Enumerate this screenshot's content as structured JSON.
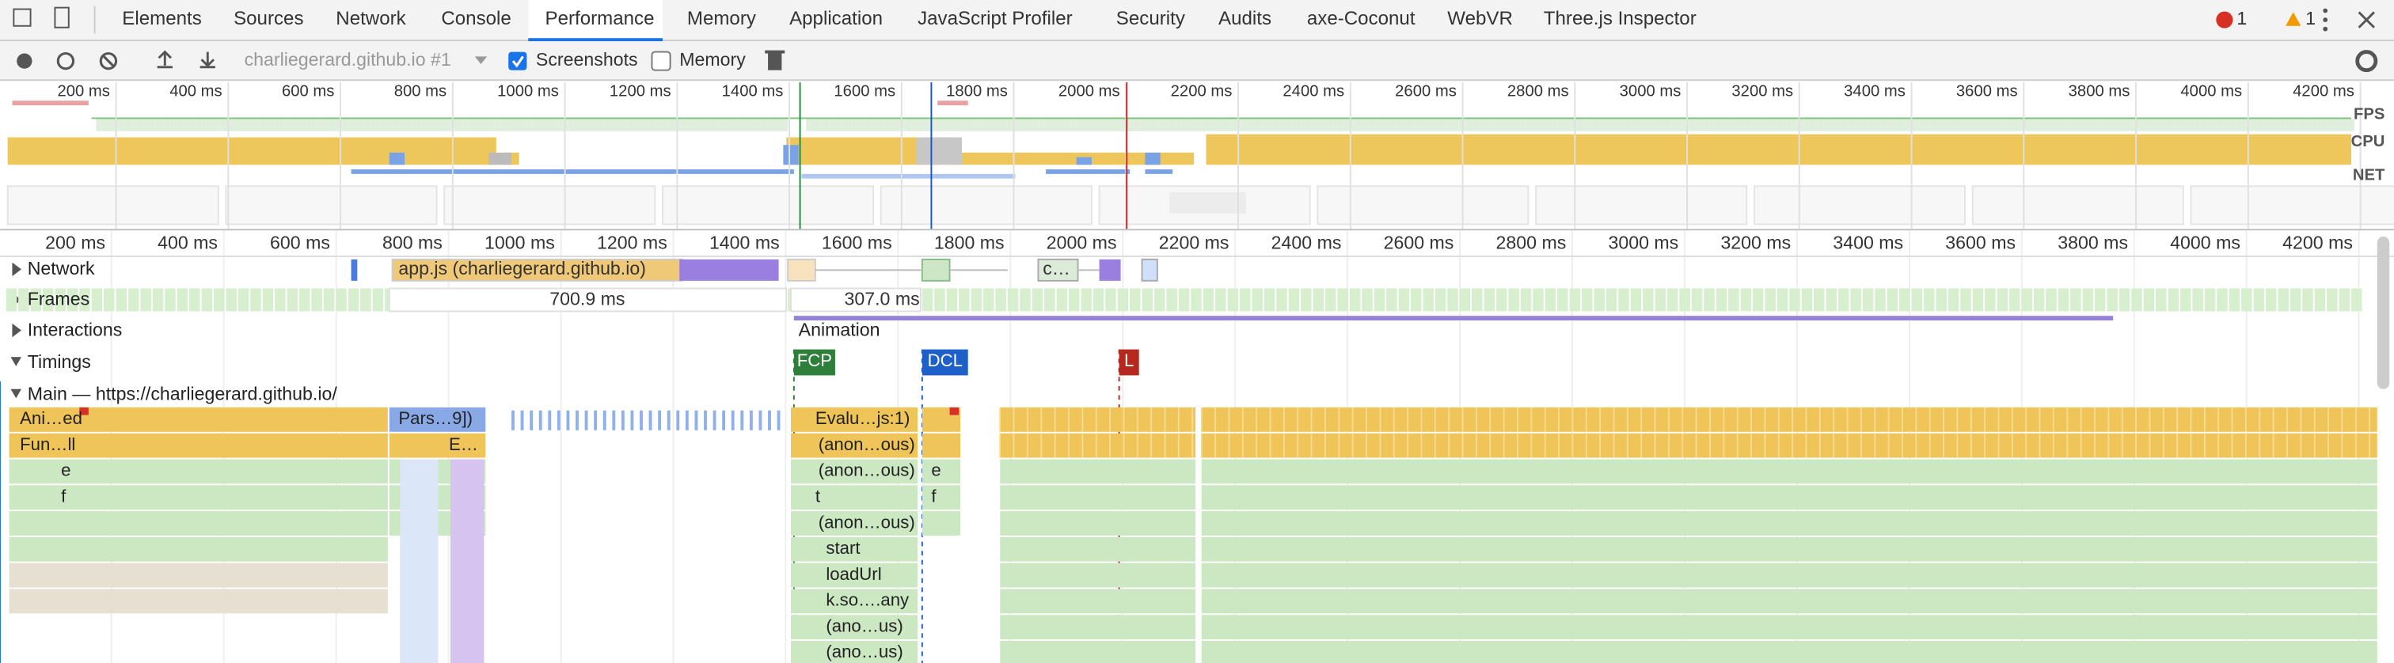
{
  "tabs": [
    "Elements",
    "Sources",
    "Network",
    "Console",
    "Performance",
    "Memory",
    "Application",
    "JavaScript Profiler",
    "Security",
    "Audits",
    "axe-Coconut",
    "WebVR",
    "Three.js Inspector"
  ],
  "console_badges": {
    "errors": "1",
    "warnings": "1"
  },
  "toolbar": {
    "target": "charliegerard.github.io #1",
    "screenshots": "Screenshots",
    "memory": "Memory"
  },
  "overview": {
    "ticks": [
      "200 ms",
      "400 ms",
      "600 ms",
      "800 ms",
      "1000 ms",
      "1200 ms",
      "1400 ms",
      "1600 ms",
      "1800 ms",
      "2000 ms",
      "2200 ms",
      "2400 ms",
      "2600 ms",
      "2800 ms",
      "3000 ms",
      "3200 ms",
      "3400 ms",
      "3600 ms",
      "3800 ms",
      "4000 ms",
      "4200 ms"
    ],
    "lanes": [
      "FPS",
      "CPU",
      "NET"
    ]
  },
  "timeline": {
    "ticks": [
      "200 ms",
      "400 ms",
      "600 ms",
      "800 ms",
      "1000 ms",
      "1200 ms",
      "1400 ms",
      "1600 ms",
      "1800 ms",
      "2000 ms",
      "2200 ms",
      "2400 ms",
      "2600 ms",
      "2800 ms",
      "3000 ms",
      "3200 ms",
      "3400 ms",
      "3600 ms",
      "3800 ms",
      "4000 ms",
      "4200 ms"
    ]
  },
  "tracks": {
    "network": "Network",
    "frames": "Frames",
    "interactions": "Interactions",
    "timings": "Timings",
    "main": "Main — https://charliegerard.github.io/"
  },
  "network_items": [
    "app.js (charliegerard.github.io)",
    "c…"
  ],
  "frames": [
    "700.9 ms",
    "307.0 ms"
  ],
  "interactions": [
    "Animation"
  ],
  "timings": [
    "FCP",
    "DCL",
    "L"
  ],
  "flame": [
    "Ani…ed",
    "Pars…9])",
    "Evalu…js:1)",
    "Fun…ll",
    "E…",
    "(anon…ous)",
    "e",
    "(anon…ous)",
    "e",
    "f",
    "t",
    "f",
    "(anon…ous)",
    "start",
    "loadUrl",
    "k.so….any",
    "(ano…us)",
    "(ano…us)"
  ]
}
